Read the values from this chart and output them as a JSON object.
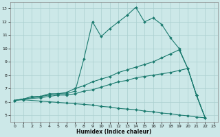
{
  "background_color": "#cce8e8",
  "grid_color": "#aacfcf",
  "line_color": "#1a7a6e",
  "xlabel": "Humidex (Indice chaleur)",
  "ylim": [
    4.5,
    13.5
  ],
  "xlim": [
    -0.5,
    23.5
  ],
  "yticks": [
    5,
    6,
    7,
    8,
    9,
    10,
    11,
    12,
    13
  ],
  "xticks": [
    0,
    1,
    2,
    3,
    4,
    5,
    6,
    7,
    8,
    9,
    10,
    11,
    12,
    13,
    14,
    15,
    16,
    17,
    18,
    19,
    20,
    21,
    22,
    23
  ],
  "line1_x": [
    0,
    1,
    2,
    3,
    4,
    5,
    6,
    7,
    8,
    9,
    10,
    11,
    12,
    13,
    14,
    15,
    16,
    17,
    18,
    19,
    20,
    21,
    22
  ],
  "line1_y": [
    6.1,
    6.2,
    6.4,
    6.4,
    6.6,
    6.6,
    6.6,
    6.8,
    9.2,
    12.0,
    10.9,
    11.5,
    12.0,
    12.5,
    13.1,
    12.0,
    12.3,
    11.8,
    10.8,
    10.0,
    8.5,
    6.5,
    4.8
  ],
  "line2_x": [
    0,
    1,
    3,
    4,
    5,
    6,
    7,
    8,
    9,
    10,
    11,
    12,
    13,
    14,
    15,
    16,
    17,
    18,
    19,
    20,
    21,
    22
  ],
  "line2_y": [
    6.1,
    6.2,
    6.4,
    6.5,
    6.6,
    6.7,
    7.0,
    7.2,
    7.5,
    7.7,
    7.9,
    8.2,
    8.4,
    8.6,
    8.8,
    9.0,
    9.3,
    9.6,
    9.9,
    8.5,
    6.5,
    4.8
  ],
  "line3_x": [
    0,
    1,
    3,
    4,
    5,
    6,
    7,
    8,
    9,
    10,
    11,
    12,
    13,
    14,
    15,
    16,
    17,
    18,
    19,
    20,
    21,
    22
  ],
  "line3_y": [
    6.1,
    6.2,
    6.3,
    6.4,
    6.5,
    6.5,
    6.6,
    6.8,
    6.9,
    7.1,
    7.3,
    7.5,
    7.6,
    7.8,
    7.9,
    8.0,
    8.1,
    8.2,
    8.35,
    8.5,
    6.5,
    4.8
  ],
  "line4_x": [
    0,
    1,
    3,
    4,
    5,
    6,
    7,
    8,
    9,
    10,
    11,
    12,
    13,
    14,
    15,
    16,
    17,
    18,
    19,
    20,
    21,
    22
  ],
  "line4_y": [
    6.1,
    6.15,
    6.05,
    6.0,
    5.95,
    5.9,
    5.85,
    5.8,
    5.75,
    5.65,
    5.6,
    5.5,
    5.45,
    5.4,
    5.3,
    5.25,
    5.15,
    5.1,
    5.0,
    4.95,
    4.85,
    4.8
  ]
}
